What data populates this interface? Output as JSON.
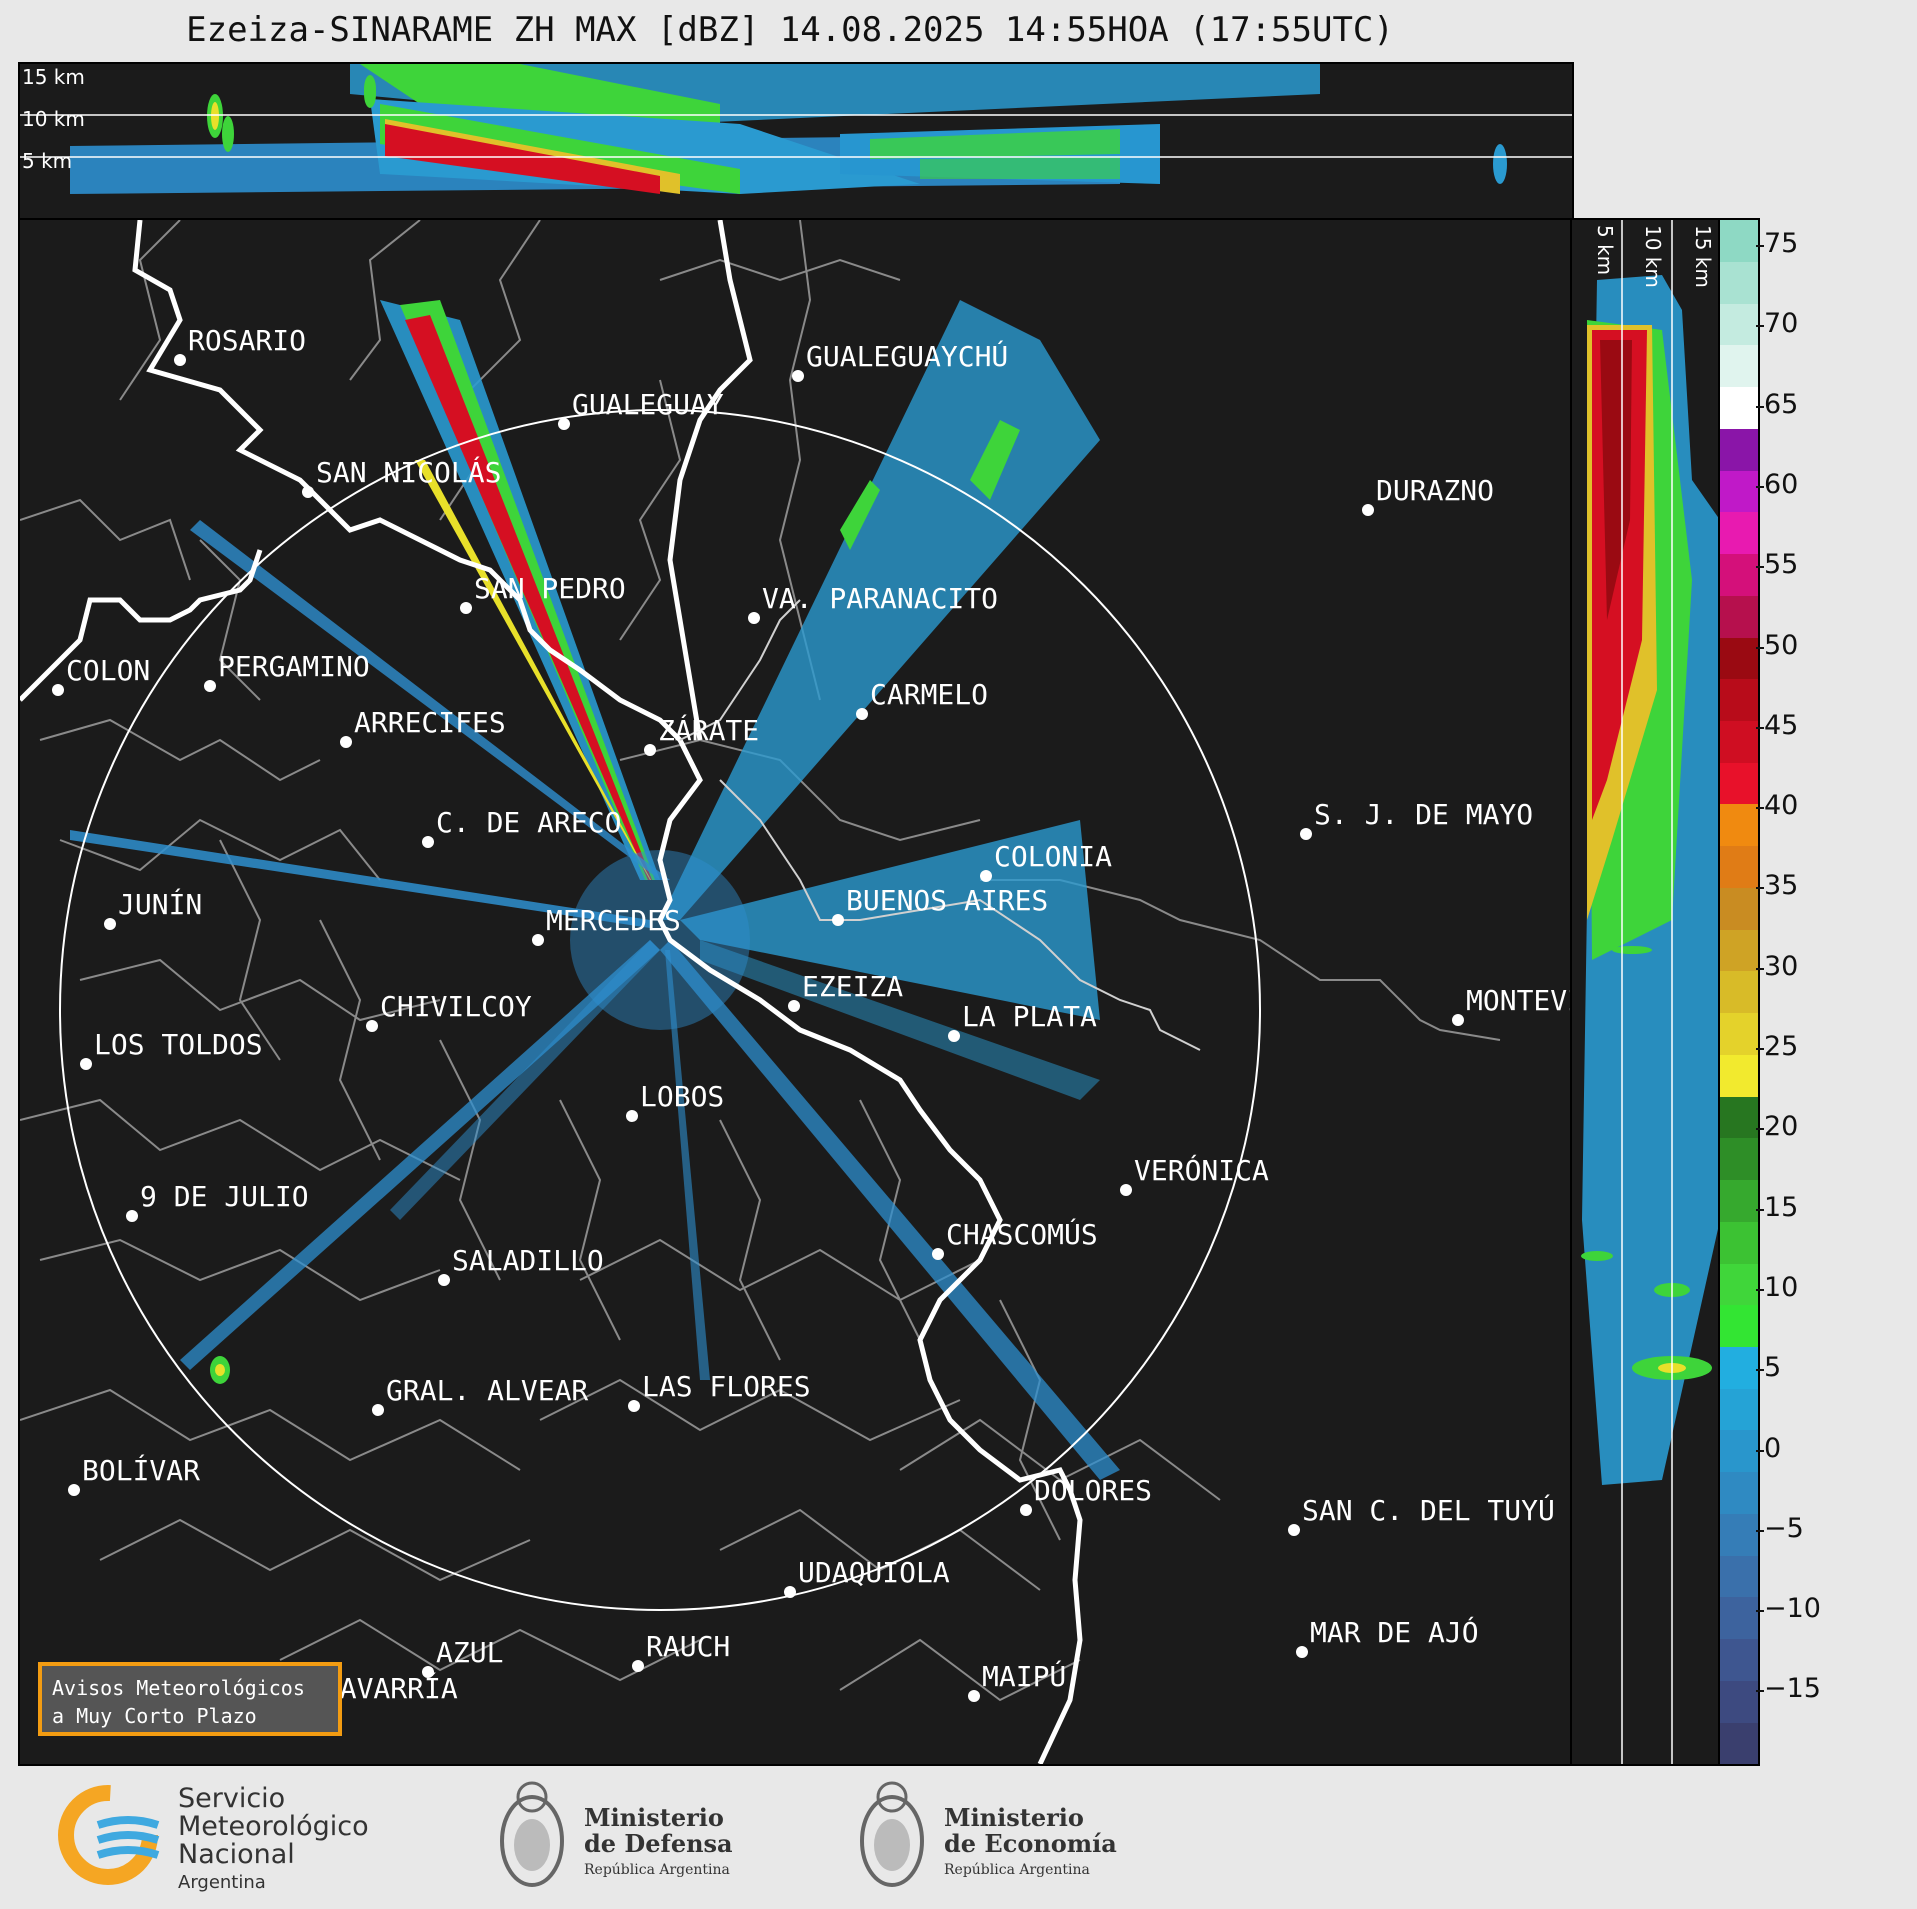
{
  "title": "Ezeiza-SINARAME ZH MAX [dBZ] 14.08.2025 14:55HOA (17:55UTC)",
  "altitude_labels": [
    "15 km",
    "10 km",
    "5 km"
  ],
  "cities": [
    {
      "name": "ROSARIO"
    },
    {
      "name": "GUALEGUAYCHÚ"
    },
    {
      "name": "GUALEGUAY"
    },
    {
      "name": "SAN NICOLÁS"
    },
    {
      "name": "DURAZNO"
    },
    {
      "name": "SAN PEDRO"
    },
    {
      "name": "VA. PARANACITO"
    },
    {
      "name": "COLON"
    },
    {
      "name": "PERGAMINO"
    },
    {
      "name": "CARMELO"
    },
    {
      "name": "ARRECIFES"
    },
    {
      "name": "ZÁRATE"
    },
    {
      "name": "S. J. DE MAYO"
    },
    {
      "name": "C. DE ARECO"
    },
    {
      "name": "COLONIA"
    },
    {
      "name": "JUNÍN"
    },
    {
      "name": "BUENOS AIRES"
    },
    {
      "name": "MERCEDES"
    },
    {
      "name": "EZEIZA"
    },
    {
      "name": "MONTEVIDEO"
    },
    {
      "name": "CHIVILCOY"
    },
    {
      "name": "LA PLATA"
    },
    {
      "name": "LOS TOLDOS"
    },
    {
      "name": "LOBOS"
    },
    {
      "name": "VERÓNICA"
    },
    {
      "name": "9 DE JULIO"
    },
    {
      "name": "CHASCOMÚS"
    },
    {
      "name": "SALADILLO"
    },
    {
      "name": "GRAL. ALVEAR"
    },
    {
      "name": "LAS FLORES"
    },
    {
      "name": "BOLÍVAR"
    },
    {
      "name": "DOLORES"
    },
    {
      "name": "SAN C. DEL TUYÚ"
    },
    {
      "name": "UDAQUIOLA"
    },
    {
      "name": "MAR DE AJÓ"
    },
    {
      "name": "AZUL"
    },
    {
      "name": "RAUCH"
    },
    {
      "name": "MAIPÚ"
    },
    {
      "name": "OLAVARRÍA"
    }
  ],
  "colorbar": {
    "ticks": [
      "75",
      "70",
      "65",
      "60",
      "55",
      "50",
      "45",
      "40",
      "35",
      "30",
      "25",
      "20",
      "15",
      "10",
      "5",
      "0",
      "−5",
      "−10",
      "−15"
    ],
    "colors": [
      "#3a3f6e",
      "#3d4a80",
      "#3e5690",
      "#3d639e",
      "#3a70ab",
      "#357db7",
      "#2f8ac2",
      "#2996cc",
      "#25a3d6",
      "#22aee0",
      "#33e533",
      "#40d63a",
      "#3cc233",
      "#36a92e",
      "#2e8e27",
      "#277620",
      "#f2ea2e",
      "#e4d22b",
      "#d8bb28",
      "#cfa325",
      "#c98c22",
      "#e07c16",
      "#f08a10",
      "#e8112a",
      "#cf0e22",
      "#b80c1a",
      "#9a0a12",
      "#b6104d",
      "#d4107a",
      "#e81ab0",
      "#c019c8",
      "#8a15a8",
      "#ffffff",
      "#e0f4ee",
      "#c4ebe0",
      "#a9e2d2",
      "#8ed9c4"
    ]
  },
  "aviso": {
    "line1": "Avisos Meteorológicos",
    "line2": "a Muy Corto Plazo"
  },
  "logos": {
    "smn": {
      "line1": "Servicio",
      "line2": "Meteorológico",
      "line3": "Nacional",
      "line4": "Argentina"
    },
    "defensa": {
      "line1": "Ministerio",
      "line2": "de Defensa",
      "line3": "República Argentina"
    },
    "economia": {
      "line1": "Ministerio",
      "line2": "de Economía",
      "line3": "República Argentina"
    }
  }
}
